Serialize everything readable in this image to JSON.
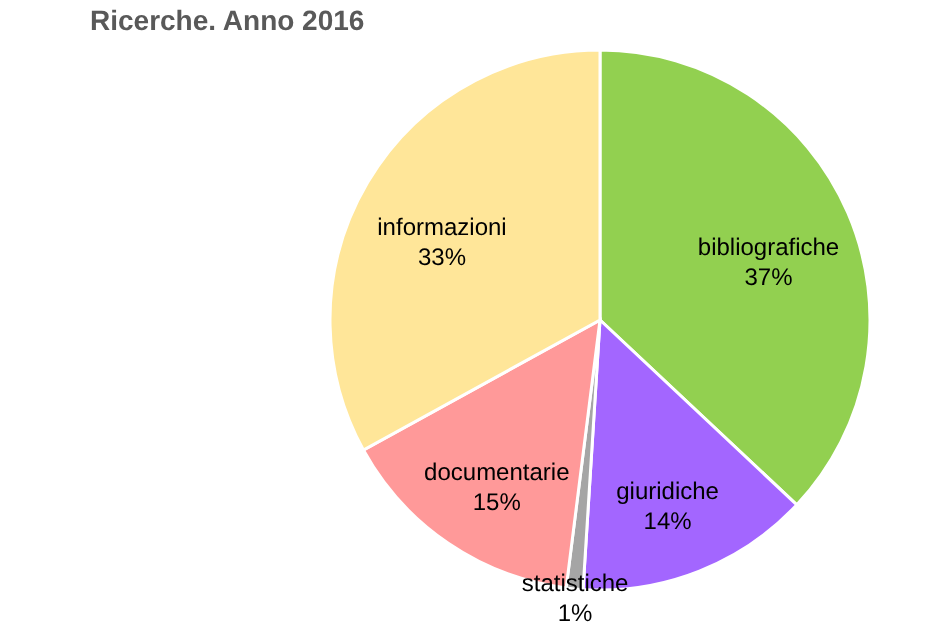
{
  "chart_data": {
    "type": "pie",
    "title": "Ricerche. Anno 2016",
    "categories": [
      "bibliografiche",
      "giuridiche",
      "statistiche",
      "documentarie",
      "informazioni"
    ],
    "values": [
      37,
      14,
      1,
      15,
      33
    ],
    "colors": [
      "#92d050",
      "#a366ff",
      "#a5a5a5",
      "#ff9999",
      "#ffe699"
    ],
    "value_labels": [
      "37%",
      "14%",
      "1%",
      "15%",
      "33%"
    ],
    "legend": false
  }
}
